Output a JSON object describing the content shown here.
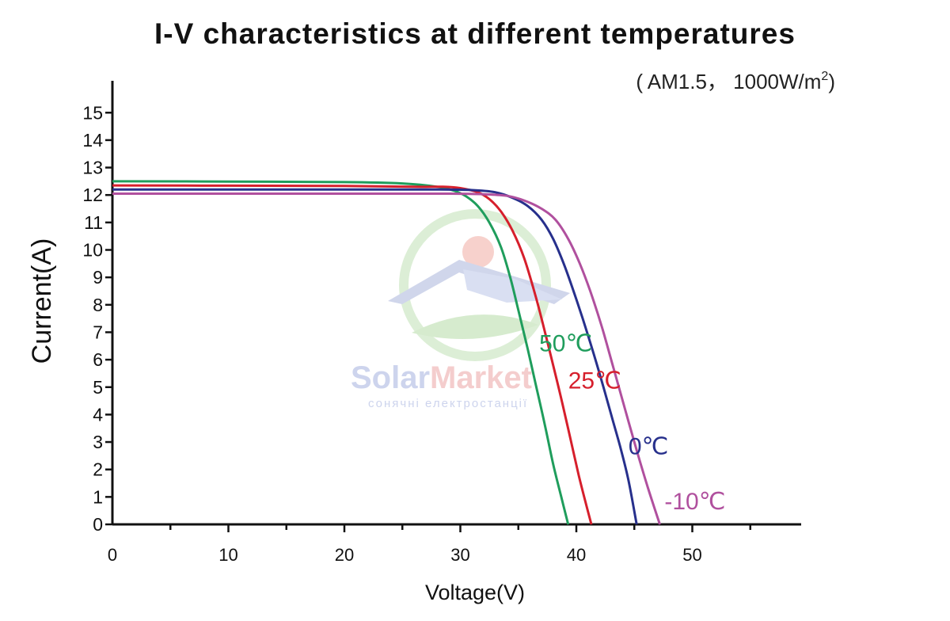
{
  "chart_data": {
    "type": "line",
    "title": "I-V characteristics at different temperatures",
    "subtitle": "( AM1.5， 1000W/m",
    "subtitle_sup": "2",
    "subtitle_close": ")",
    "xlabel": "Voltage(V)",
    "ylabel": "Current(A)",
    "xlim": [
      0,
      60
    ],
    "ylim": [
      0,
      15.5
    ],
    "x_ticks": [
      0,
      10,
      20,
      30,
      40,
      50
    ],
    "y_ticks": [
      0,
      1,
      2,
      3,
      4,
      5,
      6,
      7,
      8,
      9,
      10,
      11,
      12,
      13,
      14,
      15
    ],
    "grid": false,
    "series": [
      {
        "name": "50℃",
        "color": "#1f9d5c",
        "points": [
          [
            0,
            12.5
          ],
          [
            10,
            12.49
          ],
          [
            20,
            12.47
          ],
          [
            25,
            12.42
          ],
          [
            28,
            12.3
          ],
          [
            29.5,
            12.15
          ],
          [
            30.5,
            11.95
          ],
          [
            31.5,
            11.6
          ],
          [
            32.5,
            11.0
          ],
          [
            33.5,
            10.1
          ],
          [
            34.3,
            9.0
          ],
          [
            35,
            7.8
          ],
          [
            35.8,
            6.4
          ],
          [
            36.5,
            5.1
          ],
          [
            37.3,
            3.6
          ],
          [
            38,
            2.2
          ],
          [
            38.7,
            1.0
          ],
          [
            39.3,
            0
          ]
        ]
      },
      {
        "name": "25℃",
        "color": "#d61f2c",
        "points": [
          [
            0,
            12.35
          ],
          [
            10,
            12.34
          ],
          [
            20,
            12.33
          ],
          [
            26,
            12.3
          ],
          [
            28.5,
            12.3
          ],
          [
            30,
            12.25
          ],
          [
            31.5,
            12.1
          ],
          [
            32.5,
            11.85
          ],
          [
            33.5,
            11.4
          ],
          [
            34.5,
            10.7
          ],
          [
            35.5,
            9.7
          ],
          [
            36.5,
            8.3
          ],
          [
            37.3,
            7.0
          ],
          [
            38,
            5.8
          ],
          [
            38.8,
            4.4
          ],
          [
            39.5,
            3.1
          ],
          [
            40.2,
            1.8
          ],
          [
            40.8,
            0.8
          ],
          [
            41.3,
            0
          ]
        ]
      },
      {
        "name": "0℃",
        "color": "#27308c",
        "points": [
          [
            0,
            12.2
          ],
          [
            10,
            12.2
          ],
          [
            20,
            12.2
          ],
          [
            28,
            12.2
          ],
          [
            31,
            12.18
          ],
          [
            33,
            12.1
          ],
          [
            34.5,
            11.9
          ],
          [
            35.8,
            11.6
          ],
          [
            37,
            11.1
          ],
          [
            38,
            10.4
          ],
          [
            39,
            9.4
          ],
          [
            40,
            8.2
          ],
          [
            41,
            6.9
          ],
          [
            42,
            5.5
          ],
          [
            43,
            4.0
          ],
          [
            43.8,
            2.8
          ],
          [
            44.5,
            1.6
          ],
          [
            45.2,
            0
          ]
        ]
      },
      {
        "name": "-10℃",
        "color": "#b0509e",
        "points": [
          [
            0,
            12.05
          ],
          [
            10,
            12.05
          ],
          [
            20,
            12.05
          ],
          [
            29,
            12.05
          ],
          [
            32,
            12.03
          ],
          [
            34,
            11.97
          ],
          [
            35.5,
            11.8
          ],
          [
            37,
            11.5
          ],
          [
            38.2,
            11.1
          ],
          [
            39.3,
            10.4
          ],
          [
            40.3,
            9.5
          ],
          [
            41.2,
            8.5
          ],
          [
            42.2,
            7.2
          ],
          [
            43.2,
            5.7
          ],
          [
            44.2,
            4.2
          ],
          [
            45.2,
            2.7
          ],
          [
            46.2,
            1.3
          ],
          [
            47.2,
            0
          ]
        ]
      }
    ]
  },
  "watermark": {
    "brand_part1": "Solar",
    "brand_part2": "Market",
    "tagline": "сонячні електростанції",
    "color_primary": "#c3cbe8",
    "color_accent": "#f3c2c2",
    "color_ring": "#c9e9c2"
  }
}
